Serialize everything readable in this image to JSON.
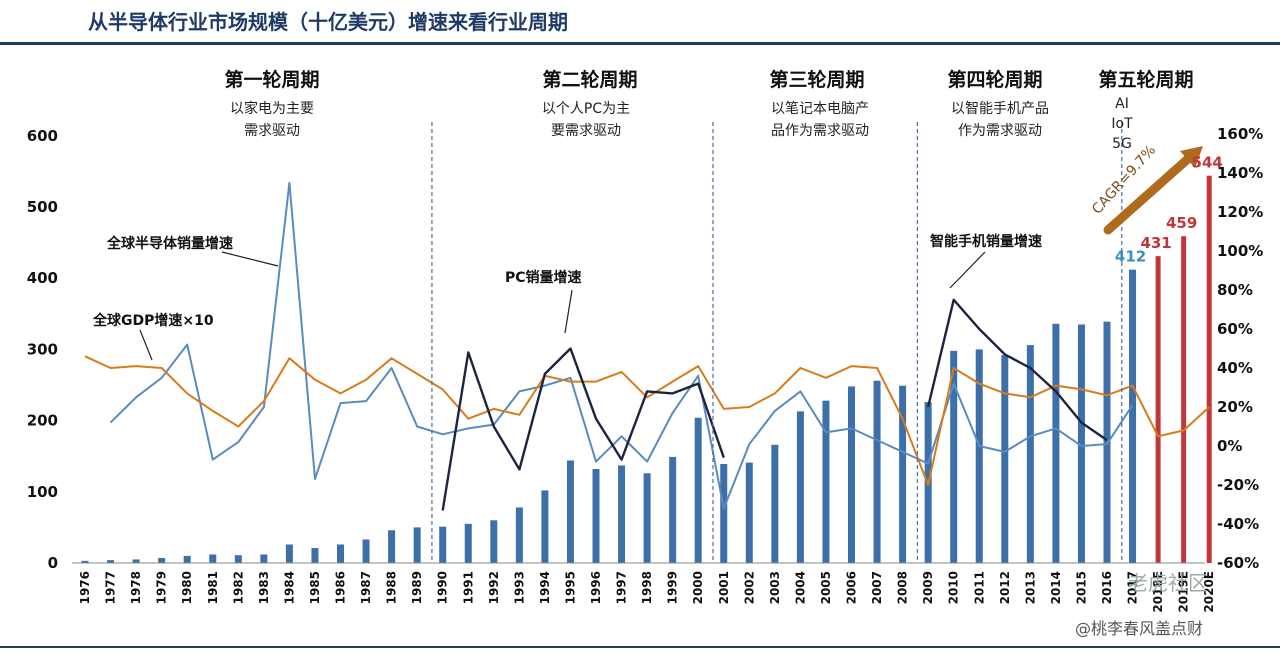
{
  "page_title": "从半导体行业市场规模（十亿美元）增速来看行业周期",
  "watermarks": [
    "老虎社区",
    "@桃李春风盖点财"
  ],
  "eras": [
    {
      "title": "第一轮周期",
      "desc": [
        "以家电为主要",
        "需求驱动"
      ]
    },
    {
      "title": "第二轮周期",
      "desc": [
        "以个人PC为主",
        "要需求驱动"
      ]
    },
    {
      "title": "第三轮周期",
      "desc": [
        "以笔记本电脑产",
        "品作为需求驱动"
      ]
    },
    {
      "title": "第四轮周期",
      "desc": [
        "以智能手机产品",
        "作为需求驱动"
      ]
    },
    {
      "title": "第五轮周期",
      "desc": [
        "AI",
        "IoT",
        "5G"
      ]
    }
  ],
  "annotations": {
    "semi": "全球半导体销量增速",
    "gdp": "全球GDP增速×10",
    "pc": "PC销量增速",
    "phone": "智能手机销量增速",
    "cagr": "CAGR=9.7%"
  },
  "colors": {
    "bar_hist": "#3d6fa8",
    "bar_forecast": "#c0373a",
    "semi_line": "#5a8bc0",
    "gdp_line": "#d97b1a",
    "device_line": "#1e2440",
    "cagr_arrow": "#b06a1e",
    "divider": "#4a6fa0"
  },
  "chart_data": {
    "type": "bar",
    "categories": [
      "1976",
      "1977",
      "1978",
      "1979",
      "1980",
      "1981",
      "1982",
      "1983",
      "1984",
      "1985",
      "1986",
      "1987",
      "1988",
      "1989",
      "1990",
      "1991",
      "1992",
      "1993",
      "1994",
      "1995",
      "1996",
      "1997",
      "1998",
      "1999",
      "2000",
      "2001",
      "2002",
      "2003",
      "2004",
      "2005",
      "2006",
      "2007",
      "2008",
      "2009",
      "2010",
      "2011",
      "2012",
      "2013",
      "2014",
      "2015",
      "2016",
      "2017",
      "2018E",
      "2019E",
      "2020E"
    ],
    "y_left": {
      "ticks": [
        "0",
        "100",
        "200",
        "300",
        "400",
        "500",
        "600"
      ],
      "ylim": [
        0,
        600
      ]
    },
    "y_right": {
      "ticks": [
        "-60%",
        "-40%",
        "-20%",
        "0%",
        "20%",
        "40%",
        "60%",
        "80%",
        "100%",
        "120%",
        "140%",
        "160%"
      ],
      "ylim": [
        -60,
        160
      ]
    },
    "series": [
      {
        "name": "market_size",
        "type": "bar",
        "axis": "left",
        "values": [
          3,
          4,
          5,
          7,
          10,
          12,
          11,
          12,
          26,
          21,
          26,
          33,
          46,
          50,
          51,
          55,
          60,
          78,
          102,
          144,
          132,
          137,
          126,
          149,
          204,
          139,
          141,
          166,
          213,
          228,
          248,
          256,
          249,
          226,
          298,
          300,
          292,
          306,
          336,
          335,
          339,
          412,
          431,
          459,
          544
        ]
      },
      {
        "name": "全球半导体销量增速",
        "type": "line",
        "axis": "right",
        "values": [
          null,
          12,
          25,
          35,
          52,
          -7,
          2,
          20,
          135,
          -17,
          22,
          23,
          40,
          10,
          6,
          9,
          11,
          28,
          31,
          35,
          -8,
          5,
          -8,
          17,
          36,
          -32,
          1,
          18,
          28,
          7,
          9,
          3,
          -3,
          -9,
          32,
          0,
          -3,
          5,
          9,
          0,
          1,
          21,
          null,
          null,
          null
        ]
      },
      {
        "name": "全球GDP增速×10",
        "type": "line",
        "axis": "right",
        "values": [
          46,
          40,
          41,
          40,
          27,
          18,
          10,
          23,
          45,
          34,
          27,
          34,
          45,
          37,
          29,
          14,
          19,
          16,
          36,
          33,
          33,
          38,
          25,
          33,
          41,
          19,
          20,
          27,
          40,
          35,
          41,
          40,
          14,
          -20,
          40,
          32,
          27,
          25,
          31,
          29,
          26,
          31,
          5,
          8,
          20
        ]
      },
      {
        "name": "PC销量增速",
        "type": "line",
        "axis": "right",
        "values": [
          null,
          null,
          null,
          null,
          null,
          null,
          null,
          null,
          null,
          null,
          null,
          null,
          null,
          null,
          -33,
          48,
          10,
          -12,
          37,
          50,
          14,
          -7,
          28,
          27,
          32,
          -6,
          null,
          null,
          null,
          null,
          null,
          null,
          null,
          null,
          null,
          null,
          null,
          null,
          null,
          null,
          null,
          null,
          null,
          null,
          null
        ]
      },
      {
        "name": "智能手机销量增速",
        "type": "line",
        "axis": "right",
        "values": [
          null,
          null,
          null,
          null,
          null,
          null,
          null,
          null,
          null,
          null,
          null,
          null,
          null,
          null,
          null,
          null,
          null,
          null,
          null,
          null,
          null,
          null,
          null,
          null,
          null,
          null,
          null,
          null,
          null,
          null,
          null,
          null,
          null,
          20,
          75,
          60,
          47,
          40,
          28,
          12,
          3,
          null,
          null,
          null,
          null
        ]
      }
    ],
    "value_labels": [
      {
        "category": "2017",
        "text": "412"
      },
      {
        "category": "2018E",
        "text": "431"
      },
      {
        "category": "2019E",
        "text": "459"
      },
      {
        "category": "2020E",
        "text": "544"
      }
    ],
    "forecast_categories": [
      "2018E",
      "2019E",
      "2020E"
    ]
  }
}
